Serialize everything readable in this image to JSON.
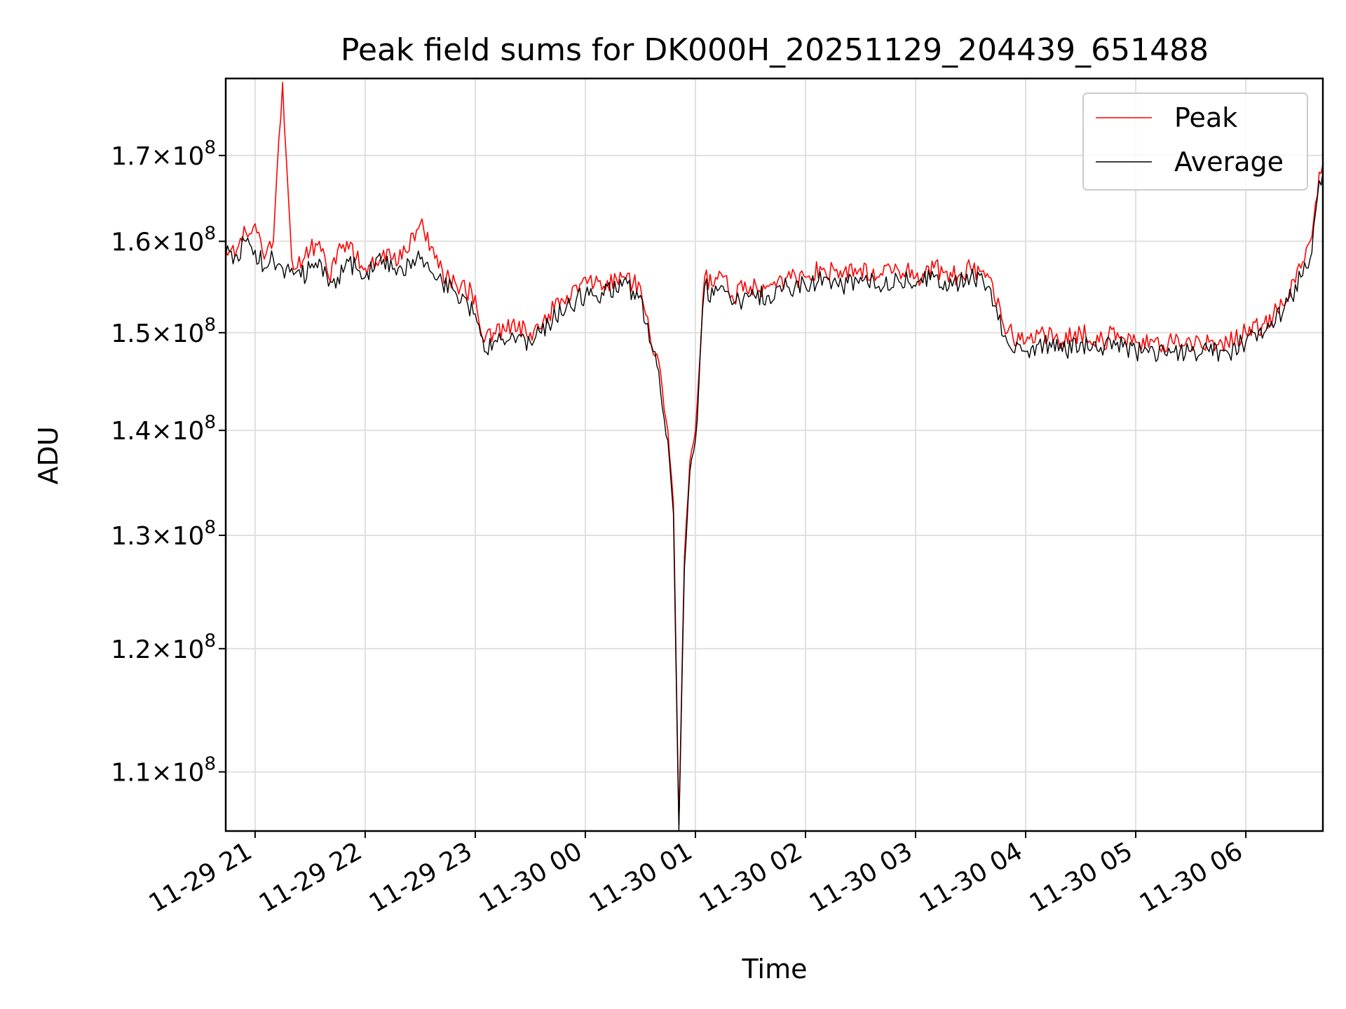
{
  "chart_data": {
    "type": "line",
    "title": "Peak field sums for DK000H_20251129_204439_651488",
    "xlabel": "Time",
    "ylabel": "ADU",
    "yscale": "log",
    "ylim": [
      105500000,
      179500000
    ],
    "xlim": [
      "2025-11-29 20:44",
      "2025-11-30 06:42"
    ],
    "grid": true,
    "legend_position": "top-right",
    "x_ticks": [
      {
        "time": "2025-11-29 21:00",
        "label": "11-29 21"
      },
      {
        "time": "2025-11-29 22:00",
        "label": "11-29 22"
      },
      {
        "time": "2025-11-29 23:00",
        "label": "11-29 23"
      },
      {
        "time": "2025-11-30 00:00",
        "label": "11-30 00"
      },
      {
        "time": "2025-11-30 01:00",
        "label": "11-30 01"
      },
      {
        "time": "2025-11-30 02:00",
        "label": "11-30 02"
      },
      {
        "time": "2025-11-30 03:00",
        "label": "11-30 03"
      },
      {
        "time": "2025-11-30 04:00",
        "label": "11-30 04"
      },
      {
        "time": "2025-11-30 05:00",
        "label": "11-30 05"
      },
      {
        "time": "2025-11-30 06:00",
        "label": "11-30 06"
      }
    ],
    "y_ticks": [
      {
        "value": 170000000,
        "mantissa": "1.7",
        "exponent": "8"
      },
      {
        "value": 160000000,
        "mantissa": "1.6",
        "exponent": "8"
      },
      {
        "value": 150000000,
        "mantissa": "1.5",
        "exponent": "8"
      },
      {
        "value": 140000000,
        "mantissa": "1.4",
        "exponent": "8"
      },
      {
        "value": 130000000,
        "mantissa": "1.3",
        "exponent": "8"
      },
      {
        "value": 120000000,
        "mantissa": "1.2",
        "exponent": "8"
      },
      {
        "value": 110000000,
        "mantissa": "1.1",
        "exponent": "8"
      }
    ],
    "tick_base": "10",
    "series": [
      {
        "name": "Peak",
        "color": "#ff0000",
        "x": [
          "2025-11-29 20:44",
          "2025-11-29 20:50",
          "2025-11-29 20:55",
          "2025-11-29 21:00",
          "2025-11-29 21:05",
          "2025-11-29 21:10",
          "2025-11-29 21:15",
          "2025-11-29 21:20",
          "2025-11-29 21:25",
          "2025-11-29 21:30",
          "2025-11-29 21:35",
          "2025-11-29 21:40",
          "2025-11-29 21:45",
          "2025-11-29 21:50",
          "2025-11-29 21:55",
          "2025-11-29 22:00",
          "2025-11-29 22:10",
          "2025-11-29 22:20",
          "2025-11-29 22:30",
          "2025-11-29 22:40",
          "2025-11-29 22:50",
          "2025-11-29 23:00",
          "2025-11-29 23:05",
          "2025-11-29 23:10",
          "2025-11-29 23:20",
          "2025-11-29 23:30",
          "2025-11-29 23:40",
          "2025-11-29 23:50",
          "2025-11-30 00:00",
          "2025-11-30 00:10",
          "2025-11-30 00:20",
          "2025-11-30 00:30",
          "2025-11-30 00:35",
          "2025-11-30 00:40",
          "2025-11-30 00:45",
          "2025-11-30 00:48",
          "2025-11-30 00:51",
          "2025-11-30 00:54",
          "2025-11-30 00:57",
          "2025-11-30 01:00",
          "2025-11-30 01:05",
          "2025-11-30 01:10",
          "2025-11-30 01:15",
          "2025-11-30 01:20",
          "2025-11-30 01:30",
          "2025-11-30 01:40",
          "2025-11-30 01:50",
          "2025-11-30 02:00",
          "2025-11-30 02:10",
          "2025-11-30 02:20",
          "2025-11-30 02:30",
          "2025-11-30 02:40",
          "2025-11-30 02:50",
          "2025-11-30 03:00",
          "2025-11-30 03:10",
          "2025-11-30 03:20",
          "2025-11-30 03:30",
          "2025-11-30 03:40",
          "2025-11-30 03:50",
          "2025-11-30 04:00",
          "2025-11-30 04:10",
          "2025-11-30 04:20",
          "2025-11-30 04:30",
          "2025-11-30 04:40",
          "2025-11-30 04:50",
          "2025-11-30 05:00",
          "2025-11-30 05:10",
          "2025-11-30 05:20",
          "2025-11-30 05:30",
          "2025-11-30 05:40",
          "2025-11-30 05:50",
          "2025-11-30 06:00",
          "2025-11-30 06:10",
          "2025-11-30 06:20",
          "2025-11-30 06:30",
          "2025-11-30 06:35",
          "2025-11-30 06:40",
          "2025-11-30 06:42"
        ],
        "y": [
          159000000,
          159000000,
          161000000,
          162000000,
          158000000,
          160000000,
          179000000,
          158000000,
          157000000,
          159000000,
          160000000,
          156000000,
          159000000,
          160000000,
          158000000,
          157000000,
          159000000,
          158000000,
          162000000,
          157000000,
          155000000,
          154000000,
          149000000,
          150000000,
          151000000,
          150000000,
          152000000,
          154000000,
          156000000,
          155000000,
          156000000,
          155000000,
          150000000,
          147000000,
          140000000,
          133000000,
          106000000,
          128000000,
          137000000,
          140000000,
          156000000,
          155000000,
          156000000,
          154000000,
          155000000,
          155000000,
          156000000,
          156000000,
          157000000,
          156000000,
          157000000,
          156000000,
          157000000,
          156000000,
          157000000,
          156000000,
          157000000,
          156000000,
          150000000,
          149000000,
          150000000,
          149000000,
          150000000,
          149000000,
          150000000,
          149000000,
          149000000,
          149000000,
          149000000,
          149000000,
          149000000,
          150000000,
          151000000,
          153000000,
          157000000,
          160000000,
          168000000,
          169000000
        ]
      },
      {
        "name": "Average",
        "color": "#000000",
        "x": [
          "2025-11-29 20:44",
          "2025-11-29 20:50",
          "2025-11-29 20:55",
          "2025-11-29 21:00",
          "2025-11-29 21:05",
          "2025-11-29 21:10",
          "2025-11-29 21:15",
          "2025-11-29 21:20",
          "2025-11-29 21:25",
          "2025-11-29 21:30",
          "2025-11-29 21:35",
          "2025-11-29 21:40",
          "2025-11-29 21:45",
          "2025-11-29 21:50",
          "2025-11-29 21:55",
          "2025-11-29 22:00",
          "2025-11-29 22:10",
          "2025-11-29 22:20",
          "2025-11-29 22:30",
          "2025-11-29 22:40",
          "2025-11-29 22:50",
          "2025-11-29 23:00",
          "2025-11-29 23:05",
          "2025-11-29 23:10",
          "2025-11-29 23:20",
          "2025-11-29 23:30",
          "2025-11-29 23:40",
          "2025-11-29 23:50",
          "2025-11-30 00:00",
          "2025-11-30 00:10",
          "2025-11-30 00:20",
          "2025-11-30 00:30",
          "2025-11-30 00:35",
          "2025-11-30 00:40",
          "2025-11-30 00:45",
          "2025-11-30 00:48",
          "2025-11-30 00:51",
          "2025-11-30 00:54",
          "2025-11-30 00:57",
          "2025-11-30 01:00",
          "2025-11-30 01:05",
          "2025-11-30 01:10",
          "2025-11-30 01:15",
          "2025-11-30 01:20",
          "2025-11-30 01:30",
          "2025-11-30 01:40",
          "2025-11-30 01:50",
          "2025-11-30 02:00",
          "2025-11-30 02:10",
          "2025-11-30 02:20",
          "2025-11-30 02:30",
          "2025-11-30 02:40",
          "2025-11-30 02:50",
          "2025-11-30 03:00",
          "2025-11-30 03:10",
          "2025-11-30 03:20",
          "2025-11-30 03:30",
          "2025-11-30 03:40",
          "2025-11-30 03:50",
          "2025-11-30 04:00",
          "2025-11-30 04:10",
          "2025-11-30 04:20",
          "2025-11-30 04:30",
          "2025-11-30 04:40",
          "2025-11-30 04:50",
          "2025-11-30 05:00",
          "2025-11-30 05:10",
          "2025-11-30 05:20",
          "2025-11-30 05:30",
          "2025-11-30 05:40",
          "2025-11-30 05:50",
          "2025-11-30 06:00",
          "2025-11-30 06:10",
          "2025-11-30 06:20",
          "2025-11-30 06:30",
          "2025-11-30 06:35",
          "2025-11-30 06:40",
          "2025-11-30 06:42"
        ],
        "y": [
          158500000,
          158500000,
          160000000,
          159000000,
          157000000,
          158000000,
          157000000,
          157000000,
          156000000,
          157000000,
          158000000,
          155000000,
          156000000,
          158000000,
          157000000,
          156000000,
          158000000,
          157000000,
          158000000,
          156000000,
          154000000,
          152000000,
          148000000,
          149000000,
          150000000,
          149000000,
          151000000,
          153000000,
          154000000,
          154000000,
          155000000,
          154000000,
          149000000,
          146000000,
          139000000,
          132000000,
          105500000,
          127000000,
          136000000,
          139000000,
          155000000,
          154000000,
          155000000,
          153000000,
          154000000,
          154000000,
          155000000,
          155000000,
          156000000,
          155000000,
          156000000,
          155000000,
          156000000,
          155000000,
          156000000,
          155000000,
          156000000,
          155000000,
          149000000,
          148000000,
          149000000,
          148000000,
          149000000,
          148000000,
          149000000,
          148000000,
          148000000,
          148000000,
          148000000,
          148000000,
          148000000,
          149000000,
          150000000,
          152000000,
          156000000,
          158000000,
          167000000,
          168000000
        ]
      }
    ]
  }
}
